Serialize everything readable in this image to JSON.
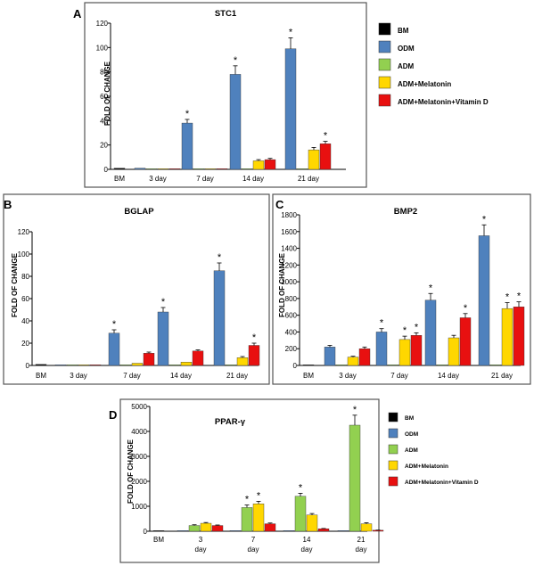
{
  "colors": {
    "BM": "#000000",
    "ODM": "#4F81BD",
    "ADM": "#92D050",
    "ADM+Melatonin": "#FFD700",
    "ADM+Melatonin+Vitamin D": "#E81010"
  },
  "legend": [
    "BM",
    "ODM",
    "ADM",
    "ADM+Melatonin",
    "ADM+Melatonin+Vitamin D"
  ],
  "chart_data": [
    {
      "panel": "A",
      "type": "bar",
      "title": "STC1",
      "ylabel": "FOLD OF CHANGE",
      "ylim": [
        0,
        120
      ],
      "yticks": [
        0,
        20,
        40,
        60,
        80,
        100,
        120
      ],
      "categories": [
        "BM",
        "3 day",
        "7 day",
        "14 day",
        "21 day"
      ],
      "series": [
        {
          "name": "BM",
          "values": [
            1,
            null,
            null,
            null,
            null
          ],
          "errors": [
            0,
            null,
            null,
            null,
            null
          ],
          "stars": [
            false,
            false,
            false,
            false,
            false
          ]
        },
        {
          "name": "ODM",
          "values": [
            null,
            1,
            38,
            78,
            99
          ],
          "errors": [
            null,
            0,
            3,
            7,
            9
          ],
          "stars": [
            false,
            false,
            true,
            true,
            true
          ]
        },
        {
          "name": "ADM",
          "values": [
            null,
            0,
            0.5,
            0,
            0
          ],
          "errors": [
            null,
            0,
            0,
            0,
            0
          ],
          "stars": [
            false,
            false,
            false,
            false,
            false
          ]
        },
        {
          "name": "ADM+Melatonin",
          "values": [
            null,
            0,
            0,
            7,
            16
          ],
          "errors": [
            null,
            0,
            0,
            1,
            2
          ],
          "stars": [
            false,
            false,
            false,
            false,
            false
          ]
        },
        {
          "name": "ADM+Melatonin+Vitamin D",
          "values": [
            null,
            0,
            0,
            8,
            21
          ],
          "errors": [
            null,
            0,
            0,
            1,
            2
          ],
          "stars": [
            false,
            false,
            false,
            false,
            true
          ]
        }
      ]
    },
    {
      "panel": "B",
      "type": "bar",
      "title": "BGLAP",
      "ylabel": "FOLD OF CHANGE",
      "ylim": [
        0,
        120
      ],
      "yticks": [
        0,
        20,
        40,
        60,
        80,
        100,
        120
      ],
      "categories": [
        "BM",
        "3 day",
        "7 day",
        "14 day",
        "21 day"
      ],
      "series": [
        {
          "name": "BM",
          "values": [
            1,
            null,
            null,
            null,
            null
          ],
          "errors": [
            0,
            null,
            null,
            null,
            null
          ],
          "stars": [
            false,
            false,
            false,
            false,
            false
          ]
        },
        {
          "name": "ODM",
          "values": [
            null,
            0,
            29,
            48,
            85
          ],
          "errors": [
            null,
            0,
            3,
            4,
            7
          ],
          "stars": [
            false,
            false,
            true,
            true,
            true
          ]
        },
        {
          "name": "ADM",
          "values": [
            null,
            0,
            0,
            0,
            0
          ],
          "errors": [
            null,
            0,
            0,
            0,
            0
          ],
          "stars": [
            false,
            false,
            false,
            false,
            false
          ]
        },
        {
          "name": "ADM+Melatonin",
          "values": [
            null,
            0,
            2,
            3,
            7
          ],
          "errors": [
            null,
            0,
            0,
            0,
            1
          ],
          "stars": [
            false,
            false,
            false,
            false,
            false
          ]
        },
        {
          "name": "ADM+Melatonin+Vitamin D",
          "values": [
            null,
            0.5,
            11,
            13,
            18
          ],
          "errors": [
            null,
            0,
            1,
            1,
            2
          ],
          "stars": [
            false,
            false,
            false,
            false,
            true
          ]
        }
      ]
    },
    {
      "panel": "C",
      "type": "bar",
      "title": "BMP2",
      "ylabel": "FOLD OF CHANGE",
      "ylim": [
        0,
        1800
      ],
      "yticks": [
        0,
        200,
        400,
        600,
        800,
        1000,
        1200,
        1400,
        1600,
        1800
      ],
      "categories": [
        "BM",
        "3 day",
        "7 day",
        "14 day",
        "21 day"
      ],
      "series": [
        {
          "name": "BM",
          "values": [
            1,
            null,
            null,
            null,
            null
          ],
          "errors": [
            0,
            null,
            null,
            null,
            null
          ],
          "stars": [
            false,
            false,
            false,
            false,
            false
          ]
        },
        {
          "name": "ODM",
          "values": [
            null,
            220,
            400,
            780,
            1550
          ],
          "errors": [
            null,
            20,
            40,
            80,
            130
          ],
          "stars": [
            false,
            false,
            true,
            true,
            true
          ]
        },
        {
          "name": "ADM",
          "values": [
            null,
            0,
            0,
            0,
            0
          ],
          "errors": [
            null,
            0,
            0,
            0,
            0
          ],
          "stars": [
            false,
            false,
            false,
            false,
            false
          ]
        },
        {
          "name": "ADM+Melatonin",
          "values": [
            null,
            100,
            310,
            330,
            680
          ],
          "errors": [
            null,
            10,
            40,
            30,
            70
          ],
          "stars": [
            false,
            false,
            true,
            false,
            true
          ]
        },
        {
          "name": "ADM+Melatonin+Vitamin D",
          "values": [
            null,
            200,
            360,
            570,
            700
          ],
          "errors": [
            null,
            20,
            30,
            50,
            60
          ],
          "stars": [
            false,
            false,
            true,
            true,
            true
          ]
        }
      ]
    },
    {
      "panel": "D",
      "type": "bar",
      "title": "PPAR-γ",
      "ylabel": "FOLD OF CHANGE",
      "ylim": [
        0,
        5000
      ],
      "yticks": [
        0,
        1000,
        2000,
        3000,
        4000,
        5000
      ],
      "categories": [
        [
          "BM"
        ],
        [
          "3",
          "day"
        ],
        [
          "7",
          "day"
        ],
        [
          "14",
          "day"
        ],
        [
          "21",
          "day"
        ]
      ],
      "series": [
        {
          "name": "BM",
          "values": [
            1,
            null,
            null,
            null,
            null
          ],
          "errors": [
            0,
            null,
            null,
            null,
            null
          ],
          "stars": [
            false,
            false,
            false,
            false,
            false
          ]
        },
        {
          "name": "ODM",
          "values": [
            null,
            0,
            0,
            0,
            0
          ],
          "errors": [
            null,
            0,
            0,
            0,
            0
          ],
          "stars": [
            false,
            false,
            false,
            false,
            false
          ]
        },
        {
          "name": "ADM",
          "values": [
            null,
            230,
            950,
            1400,
            4250
          ],
          "errors": [
            null,
            30,
            100,
            120,
            400
          ],
          "stars": [
            false,
            false,
            true,
            true,
            true
          ]
        },
        {
          "name": "ADM+Melatonin",
          "values": [
            null,
            320,
            1100,
            650,
            300
          ],
          "errors": [
            null,
            30,
            100,
            60,
            40
          ],
          "stars": [
            false,
            false,
            true,
            false,
            false
          ]
        },
        {
          "name": "ADM+Melatonin+Vitamin D",
          "values": [
            null,
            230,
            300,
            100,
            40
          ],
          "errors": [
            null,
            20,
            30,
            10,
            5
          ],
          "stars": [
            false,
            false,
            false,
            false,
            false
          ]
        }
      ]
    }
  ]
}
